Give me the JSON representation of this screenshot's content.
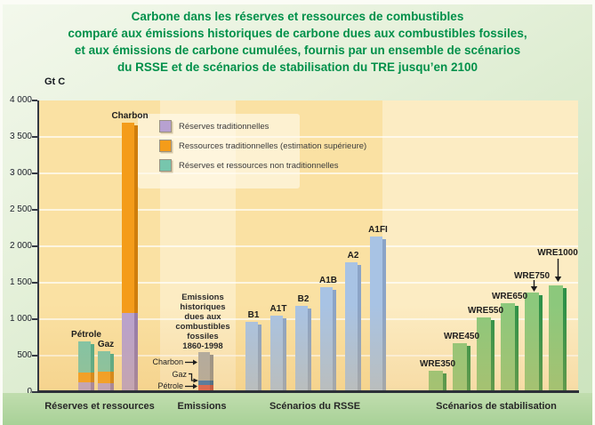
{
  "title": {
    "lines": [
      "Carbone dans les réserves et ressources de combustibles",
      "comparé aux émissions historiques de carbone dues aux combustibles fossiles,",
      "et aux émissions de carbone cumulées, fournis par un ensemble de scénarios",
      "du RSSE et de scénarios de stabilisation du TRE jusqu’en 2100"
    ],
    "color": "#00904a"
  },
  "y_axis": {
    "unit_label": "Gt C",
    "max": 4000,
    "step": 500,
    "ticks": [
      {
        "label": "4 000",
        "value": 4000
      },
      {
        "label": "3 500",
        "value": 3500
      },
      {
        "label": "3 000",
        "value": 3000
      },
      {
        "label": "2 500",
        "value": 2500
      },
      {
        "label": "2 000",
        "value": 2000
      },
      {
        "label": "1 500",
        "value": 1500
      },
      {
        "label": "1 000",
        "value": 1000
      },
      {
        "label": "500",
        "value": 500
      },
      {
        "label": "0",
        "value": 0
      }
    ]
  },
  "legend": {
    "items": [
      {
        "label": "Réserves traditionnelles",
        "color_key": "purple"
      },
      {
        "label": "Ressources traditionnelles (estimation supérieure)",
        "color_key": "orange"
      },
      {
        "label": "Réserves et ressources non traditionnelles",
        "color_key": "teal"
      }
    ]
  },
  "emissions_annotation": {
    "lines": [
      "Emissions",
      "historiques",
      "dues aux",
      "combustibles",
      "fossiles",
      "1860-1998"
    ],
    "arrow_labels": [
      "Charbon",
      "Gaz",
      "Pétrole"
    ]
  },
  "x_axis": {
    "group_labels": [
      "Réserves et ressources",
      "Emissions",
      "Scénarios du RSSE",
      "Scénarios de stabilisation"
    ]
  },
  "chart_data": {
    "type": "bar",
    "title": "Carbone dans les réserves et ressources de combustibles comparé aux émissions historiques de carbone dues aux combustibles fossiles, et aux émissions de carbone cumulées, fournis par un ensemble de scénarios du RSSE et de scénarios de stabilisation du TRE jusqu'en 2100",
    "unit": "Gt C",
    "ylabel": "Gt C",
    "ylim": [
      0,
      4000
    ],
    "ytick_step": 500,
    "grid": true,
    "legend_position": "inside-upper-left",
    "groups": [
      {
        "label": "Réserves et ressources",
        "bars": [
          {
            "id": "petrole",
            "label": "Pétrole",
            "total": 700,
            "stack": [
              {
                "series": "Réserves traditionnelles",
                "value": 130,
                "color": "purple"
              },
              {
                "series": "Ressources traditionnelles (estimation supérieure)",
                "value": 135,
                "color": "orange"
              },
              {
                "series": "Réserves et ressources non traditionnelles",
                "value": 435,
                "color": "teal"
              }
            ]
          },
          {
            "id": "gaz",
            "label": "Gaz",
            "total": 560,
            "stack": [
              {
                "series": "Réserves traditionnelles",
                "value": 120,
                "color": "purple"
              },
              {
                "series": "Ressources traditionnelles (estimation supérieure)",
                "value": 155,
                "color": "orange"
              },
              {
                "series": "Réserves et ressources non traditionnelles",
                "value": 285,
                "color": "teal"
              }
            ]
          },
          {
            "id": "charbon",
            "label": "Charbon",
            "total": 3700,
            "stack": [
              {
                "series": "Réserves traditionnelles",
                "value": 1080,
                "color": "purple"
              },
              {
                "series": "Ressources traditionnelles (estimation supérieure)",
                "value": 2620,
                "color": "orange"
              }
            ]
          }
        ]
      },
      {
        "label": "Emissions",
        "bars": [
          {
            "id": "emissions",
            "label": "Emissions historiques dues aux combustibles fossiles 1860-1998",
            "total": 545,
            "stack": [
              {
                "series": "Pétrole",
                "value": 100,
                "color": "red"
              },
              {
                "series": "Gaz",
                "value": 55,
                "color": "emblue"
              },
              {
                "series": "Charbon",
                "value": 390,
                "color": "gray"
              }
            ]
          }
        ]
      },
      {
        "label": "Scénarios du RSSE",
        "bars": [
          {
            "id": "B1",
            "label": "B1",
            "total": 960,
            "stack": [
              {
                "series": "Emissions cumulées jusqu'en 2100",
                "value": 960,
                "color": "blue"
              }
            ]
          },
          {
            "id": "A1T",
            "label": "A1T",
            "total": 1050,
            "stack": [
              {
                "series": "Emissions cumulées jusqu'en 2100",
                "value": 1050,
                "color": "blue"
              }
            ]
          },
          {
            "id": "B2",
            "label": "B2",
            "total": 1180,
            "stack": [
              {
                "series": "Emissions cumulées jusqu'en 2100",
                "value": 1180,
                "color": "blue"
              }
            ]
          },
          {
            "id": "A1B",
            "label": "A1B",
            "total": 1440,
            "stack": [
              {
                "series": "Emissions cumulées jusqu'en 2100",
                "value": 1440,
                "color": "blue"
              }
            ]
          },
          {
            "id": "A2",
            "label": "A2",
            "total": 1780,
            "stack": [
              {
                "series": "Emissions cumulées jusqu'en 2100",
                "value": 1780,
                "color": "blue"
              }
            ]
          },
          {
            "id": "A1FI",
            "label": "A1FI",
            "total": 2130,
            "stack": [
              {
                "series": "Emissions cumulées jusqu'en 2100",
                "value": 2130,
                "color": "blue"
              }
            ]
          }
        ]
      },
      {
        "label": "Scénarios de stabilisation",
        "bars": [
          {
            "id": "WRE350",
            "label": "WRE350",
            "total": 290,
            "stack": [
              {
                "series": "Emissions cumulées jusqu'en 2100",
                "value": 290,
                "color": "green"
              }
            ]
          },
          {
            "id": "WRE450",
            "label": "WRE450",
            "total": 670,
            "stack": [
              {
                "series": "Emissions cumulées jusqu'en 2100",
                "value": 670,
                "color": "green"
              }
            ]
          },
          {
            "id": "WRE550",
            "label": "WRE550",
            "total": 1030,
            "stack": [
              {
                "series": "Emissions cumulées jusqu'en 2100",
                "value": 1030,
                "color": "green"
              }
            ]
          },
          {
            "id": "WRE650",
            "label": "WRE650",
            "total": 1220,
            "stack": [
              {
                "series": "Emissions cumulées jusqu'en 2100",
                "value": 1220,
                "color": "green"
              }
            ]
          },
          {
            "id": "WRE750",
            "label": "WRE750",
            "total": 1360,
            "stack": [
              {
                "series": "Emissions cumulées jusqu'en 2100",
                "value": 1360,
                "color": "green"
              }
            ]
          },
          {
            "id": "WRE1000",
            "label": "WRE1000",
            "total": 1460,
            "stack": [
              {
                "series": "Emissions cumulées jusqu'en 2100",
                "value": 1460,
                "color": "green"
              }
            ]
          }
        ]
      }
    ]
  },
  "colors": {
    "purple": {
      "main": "#b7a1d1",
      "shadow": "#937aae"
    },
    "orange": {
      "main": "#f49c1a",
      "shadow": "#cf7e0c"
    },
    "teal": {
      "main": "#77c6ad",
      "shadow": "#44a98d"
    },
    "blue": {
      "main": "#a8c3e4",
      "shadow": "#8ba4c7"
    },
    "green": {
      "main": "#8cc87c",
      "shadow": "#2e9148"
    },
    "gray": {
      "main": "#aaaaaa",
      "shadow": "#8f8f8f"
    },
    "red": {
      "main": "#d8514b",
      "shadow": "#b8423c"
    },
    "emblue": {
      "main": "#2e6cb2",
      "shadow": "#235a94"
    },
    "plot_bg": "#fae1a3",
    "plot_bg_light": "#fcecc3",
    "bottom_band": "#b6d9a4",
    "title_green": "#00904a"
  }
}
